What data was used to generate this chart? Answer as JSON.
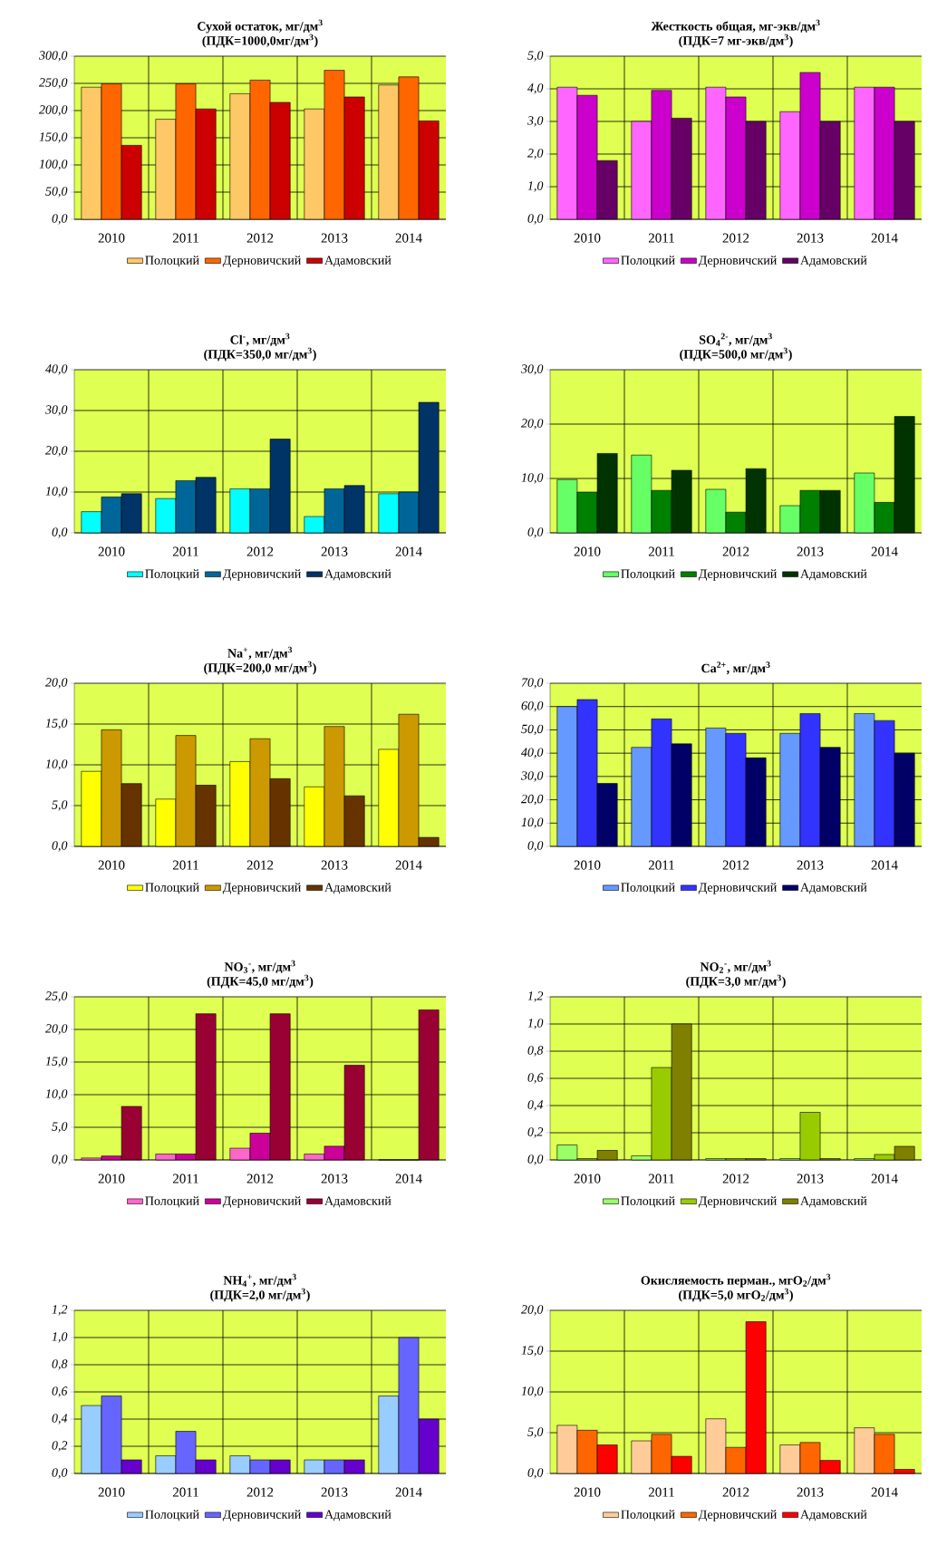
{
  "chart_data": [
    {
      "type": "bar",
      "title": "Сухой остаток, мг/дм$^{3}$",
      "subtitle": "(ПДК=1000,0мг/дм$^{3}$)",
      "categories": [
        "2010",
        "2011",
        "2012",
        "2013",
        "2014"
      ],
      "ylim": [
        0,
        300
      ],
      "yticks": [
        {
          "value": 0,
          "label": "0,0"
        },
        {
          "value": 50,
          "label": "50,0"
        },
        {
          "value": 100,
          "label": "100,0"
        },
        {
          "value": 150,
          "label": "150,0"
        },
        {
          "value": 200,
          "label": "200,0"
        },
        {
          "value": 250,
          "label": "250,0"
        },
        {
          "value": 300,
          "label": "300,0"
        }
      ],
      "grid": true,
      "legend": "bottom",
      "series": [
        {
          "name": "Полоцкий",
          "color": "#ffc866",
          "values": [
            243,
            184,
            231,
            203,
            247
          ]
        },
        {
          "name": "Дерновичский",
          "color": "#ff6600",
          "values": [
            249,
            249,
            256,
            274,
            262
          ]
        },
        {
          "name": "Адамовский",
          "color": "#cc0000",
          "values": [
            136,
            203,
            215,
            225,
            181
          ]
        }
      ]
    },
    {
      "type": "bar",
      "title": "Жесткость общая, мг-экв/дм$^{3}$",
      "subtitle": "(ПДК=7 мг-экв/дм$^{3}$)",
      "categories": [
        "2010",
        "2011",
        "2012",
        "2013",
        "2014"
      ],
      "ylim": [
        0,
        5
      ],
      "yticks": [
        {
          "value": 0,
          "label": "0,0"
        },
        {
          "value": 1,
          "label": "1,0"
        },
        {
          "value": 2,
          "label": "2,0"
        },
        {
          "value": 3,
          "label": "3,0"
        },
        {
          "value": 4,
          "label": "4,0"
        },
        {
          "value": 5,
          "label": "5,0"
        }
      ],
      "grid": true,
      "legend": "bottom",
      "series": [
        {
          "name": "Полоцкий",
          "color": "#ff66ff",
          "values": [
            4.05,
            3.0,
            4.05,
            3.3,
            4.05
          ]
        },
        {
          "name": "Дерновичский",
          "color": "#cc00cc",
          "values": [
            3.8,
            3.95,
            3.75,
            4.5,
            4.05
          ]
        },
        {
          "name": "Адамовский",
          "color": "#660066",
          "values": [
            1.8,
            3.1,
            3.0,
            3.0,
            3.0
          ]
        }
      ]
    },
    {
      "type": "bar",
      "title": "Cl$^{-}$, мг/дм$^{3}$",
      "subtitle": "(ПДК=350,0 мг/дм$^{3}$)",
      "categories": [
        "2010",
        "2011",
        "2012",
        "2013",
        "2014"
      ],
      "ylim": [
        0,
        40
      ],
      "yticks": [
        {
          "value": 0,
          "label": "0,0"
        },
        {
          "value": 10,
          "label": "10,0"
        },
        {
          "value": 20,
          "label": "20,0"
        },
        {
          "value": 30,
          "label": "30,0"
        },
        {
          "value": 40,
          "label": "40,0"
        }
      ],
      "grid": true,
      "legend": "bottom",
      "series": [
        {
          "name": "Полоцкий",
          "color": "#00ffff",
          "values": [
            5.2,
            8.4,
            10.8,
            4.0,
            9.6
          ]
        },
        {
          "name": "Дерновичский",
          "color": "#006699",
          "values": [
            8.8,
            12.8,
            10.8,
            10.8,
            10.0
          ]
        },
        {
          "name": "Адамовский",
          "color": "#003366",
          "values": [
            9.6,
            13.6,
            23.0,
            11.6,
            32.0
          ]
        }
      ]
    },
    {
      "type": "bar",
      "title": "SO$_{4}$$^{2-}$, мг/дм$^{3}$",
      "subtitle": "(ПДК=500,0 мг/дм$^{3}$)",
      "categories": [
        "2010",
        "2011",
        "2012",
        "2013",
        "2014"
      ],
      "ylim": [
        0,
        30
      ],
      "yticks": [
        {
          "value": 0,
          "label": "0,0"
        },
        {
          "value": 10,
          "label": "10,0"
        },
        {
          "value": 20,
          "label": "20,0"
        },
        {
          "value": 30,
          "label": "30,0"
        }
      ],
      "grid": true,
      "legend": "bottom",
      "series": [
        {
          "name": "Полоцкий",
          "color": "#66ff66",
          "values": [
            9.8,
            14.3,
            8.0,
            5.0,
            11.0
          ]
        },
        {
          "name": "Дерновичский",
          "color": "#008000",
          "values": [
            7.5,
            7.8,
            3.8,
            7.8,
            5.6
          ]
        },
        {
          "name": "Адамовский",
          "color": "#003300",
          "values": [
            14.6,
            11.5,
            11.8,
            7.8,
            21.4
          ]
        }
      ]
    },
    {
      "type": "bar",
      "title": "Na$^{+}$, мг/дм$^{3}$",
      "subtitle": "(ПДК=200,0 мг/дм$^{3}$)",
      "categories": [
        "2010",
        "2011",
        "2012",
        "2013",
        "2014"
      ],
      "ylim": [
        0,
        20
      ],
      "yticks": [
        {
          "value": 0,
          "label": "0,0"
        },
        {
          "value": 5,
          "label": "5,0"
        },
        {
          "value": 10,
          "label": "10,0"
        },
        {
          "value": 15,
          "label": "15,0"
        },
        {
          "value": 20,
          "label": "20,0"
        }
      ],
      "grid": true,
      "legend": "bottom",
      "series": [
        {
          "name": "Полоцкий",
          "color": "#ffff00",
          "values": [
            9.2,
            5.8,
            10.4,
            7.3,
            11.9
          ]
        },
        {
          "name": "Дерновичский",
          "color": "#cc9900",
          "values": [
            14.3,
            13.6,
            13.2,
            14.7,
            16.2
          ]
        },
        {
          "name": "Адамовский",
          "color": "#663300",
          "values": [
            7.7,
            7.5,
            8.3,
            6.2,
            1.1
          ]
        }
      ]
    },
    {
      "type": "bar",
      "title": "Ca$^{2+}$, мг/дм$^{3}$",
      "categories": [
        "2010",
        "2011",
        "2012",
        "2013",
        "2014"
      ],
      "ylim": [
        0,
        70
      ],
      "yticks": [
        {
          "value": 0,
          "label": "0,0"
        },
        {
          "value": 10,
          "label": "10,0"
        },
        {
          "value": 20,
          "label": "20,0"
        },
        {
          "value": 30,
          "label": "30,0"
        },
        {
          "value": 40,
          "label": "40,0"
        },
        {
          "value": 50,
          "label": "50,0"
        },
        {
          "value": 60,
          "label": "60,0"
        },
        {
          "value": 70,
          "label": "70,0"
        }
      ],
      "grid": true,
      "legend": "bottom",
      "series": [
        {
          "name": "Полоцкий",
          "color": "#6699ff",
          "values": [
            60,
            42.5,
            50.8,
            48.5,
            57
          ]
        },
        {
          "name": "Дерновичский",
          "color": "#3333ff",
          "values": [
            63,
            54.7,
            48.5,
            57,
            54
          ]
        },
        {
          "name": "Адамовский",
          "color": "#000066",
          "values": [
            27,
            44,
            38,
            42.5,
            40
          ]
        }
      ]
    },
    {
      "type": "bar",
      "title": "NO$_{3}$$^{-}$, мг/дм$^{3}$",
      "subtitle": "(ПДК=45,0 мг/дм$^{3}$)",
      "categories": [
        "2010",
        "2011",
        "2012",
        "2013",
        "2014"
      ],
      "ylim": [
        0,
        25
      ],
      "yticks": [
        {
          "value": 0,
          "label": "0,0"
        },
        {
          "value": 5,
          "label": "5,0"
        },
        {
          "value": 10,
          "label": "10,0"
        },
        {
          "value": 15,
          "label": "15,0"
        },
        {
          "value": 20,
          "label": "20,0"
        },
        {
          "value": 25,
          "label": "25,0"
        }
      ],
      "grid": true,
      "legend": "bottom",
      "series": [
        {
          "name": "Полоцкий",
          "color": "#ff66cc",
          "values": [
            0.3,
            0.9,
            1.8,
            0.9,
            0
          ]
        },
        {
          "name": "Дерновичский",
          "color": "#cc0099",
          "values": [
            0.6,
            0.9,
            4.1,
            2.1,
            0
          ]
        },
        {
          "name": "Адамовский",
          "color": "#990033",
          "values": [
            8.2,
            22.4,
            22.4,
            14.5,
            23.0
          ]
        }
      ]
    },
    {
      "type": "bar",
      "title": "NO$_{2}$$^{-}$, мг/дм$^{3}$",
      "subtitle": "(ПДК=3,0 мг/дм$^{3}$)",
      "categories": [
        "2010",
        "2011",
        "2012",
        "2013",
        "2014"
      ],
      "ylim": [
        0,
        1.2
      ],
      "yticks": [
        {
          "value": 0,
          "label": "0,0"
        },
        {
          "value": 0.2,
          "label": "0,2"
        },
        {
          "value": 0.4,
          "label": "0,4"
        },
        {
          "value": 0.6,
          "label": "0,6"
        },
        {
          "value": 0.8,
          "label": "0,8"
        },
        {
          "value": 1.0,
          "label": "1,0"
        },
        {
          "value": 1.2,
          "label": "1,2"
        }
      ],
      "grid": true,
      "legend": "bottom",
      "series": [
        {
          "name": "Полоцкий",
          "color": "#99ff66",
          "values": [
            0.11,
            0.03,
            0.01,
            0.01,
            0.01
          ]
        },
        {
          "name": "Дерновичский",
          "color": "#99cc00",
          "values": [
            0.01,
            0.68,
            0.01,
            0.35,
            0.04
          ]
        },
        {
          "name": "Адамовский",
          "color": "#808000",
          "values": [
            0.07,
            1.0,
            0.01,
            0.01,
            0.1
          ]
        }
      ]
    },
    {
      "type": "bar",
      "title": "NH$_{4}$$^{+}$, мг/дм$^{3}$",
      "subtitle": "(ПДК=2,0 мг/дм$^{3}$)",
      "categories": [
        "2010",
        "2011",
        "2012",
        "2013",
        "2014"
      ],
      "ylim": [
        0,
        1.2
      ],
      "yticks": [
        {
          "value": 0,
          "label": "0,0"
        },
        {
          "value": 0.2,
          "label": "0,2"
        },
        {
          "value": 0.4,
          "label": "0,4"
        },
        {
          "value": 0.6,
          "label": "0,6"
        },
        {
          "value": 0.8,
          "label": "0,8"
        },
        {
          "value": 1.0,
          "label": "1,0"
        },
        {
          "value": 1.2,
          "label": "1,2"
        }
      ],
      "grid": true,
      "legend": "bottom",
      "series": [
        {
          "name": "Полоцкий",
          "color": "#99ccff",
          "values": [
            0.5,
            0.13,
            0.13,
            0.1,
            0.57
          ]
        },
        {
          "name": "Дерновичский",
          "color": "#6666ff",
          "values": [
            0.57,
            0.31,
            0.1,
            0.1,
            1.0
          ]
        },
        {
          "name": "Адамовский",
          "color": "#6600cc",
          "values": [
            0.1,
            0.1,
            0.1,
            0.1,
            0.4
          ]
        }
      ]
    },
    {
      "type": "bar",
      "title": "Окисляемость перман., мгO$_{2}$/дм$^{3}$",
      "subtitle": "(ПДК=5,0 мгO$_{2}$/дм$^{3}$)",
      "categories": [
        "2010",
        "2011",
        "2012",
        "2013",
        "2014"
      ],
      "ylim": [
        0,
        20
      ],
      "yticks": [
        {
          "value": 0,
          "label": "0,0"
        },
        {
          "value": 5,
          "label": "5,0"
        },
        {
          "value": 10,
          "label": "10,0"
        },
        {
          "value": 15,
          "label": "15,0"
        },
        {
          "value": 20,
          "label": "20,0"
        }
      ],
      "grid": true,
      "legend": "bottom",
      "series": [
        {
          "name": "Полоцкий",
          "color": "#ffcc99",
          "values": [
            5.9,
            4.0,
            6.7,
            3.5,
            5.6
          ]
        },
        {
          "name": "Дерновичский",
          "color": "#ff6600",
          "values": [
            5.3,
            4.8,
            3.2,
            3.8,
            4.8
          ]
        },
        {
          "name": "Адамовский",
          "color": "#ff0000",
          "values": [
            3.5,
            2.1,
            18.6,
            1.6,
            0.5
          ]
        }
      ]
    }
  ]
}
